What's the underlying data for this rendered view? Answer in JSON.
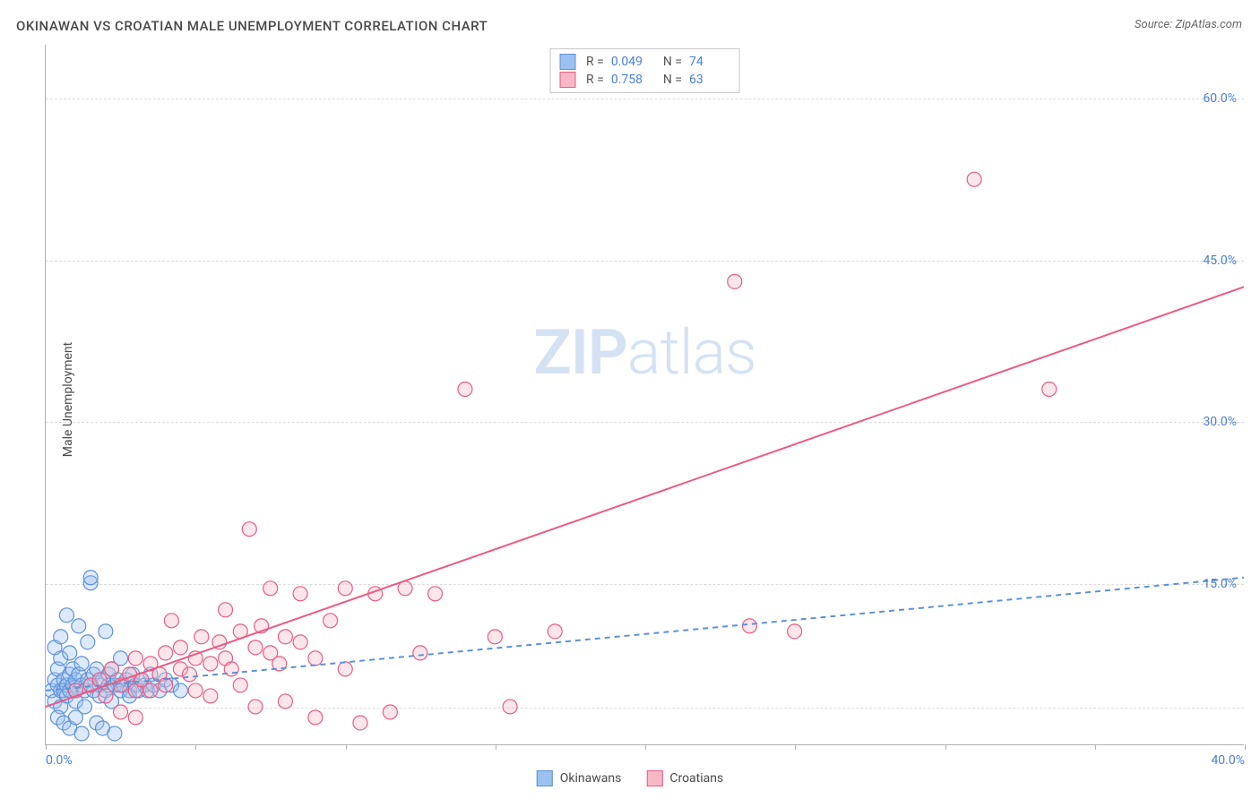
{
  "title": "OKINAWAN VS CROATIAN MALE UNEMPLOYMENT CORRELATION CHART",
  "source_prefix": "Source: ",
  "source_name": "ZipAtlas.com",
  "y_axis_label": "Male Unemployment",
  "watermark_bold": "ZIP",
  "watermark_light": "atlas",
  "chart": {
    "type": "scatter",
    "background_color": "#ffffff",
    "grid_color": "#dcdcdc",
    "axis_color": "#b0b0b0",
    "tick_label_color": "#4a7fd8",
    "xlim": [
      0,
      40
    ],
    "ylim": [
      0,
      65
    ],
    "x_ticks": [
      0,
      5,
      10,
      15,
      20,
      25,
      30,
      35,
      40
    ],
    "x_tick_labels": {
      "0": "0.0%",
      "40": "40.0%"
    },
    "y_ticks": [
      15,
      30,
      45,
      60
    ],
    "y_tick_labels": [
      "15.0%",
      "30.0%",
      "45.0%",
      "60.0%"
    ],
    "y_grid_extra": [
      3.5
    ],
    "marker_radius": 8,
    "marker_stroke_width": 1.2,
    "marker_fill_opacity": 0.35,
    "line_width": 2,
    "dash_pattern": "6 5"
  },
  "series": [
    {
      "key": "okinawans",
      "label": "Okinawans",
      "color_fill": "#9bc1f0",
      "color_stroke": "#5d92d6",
      "line_color": "#5d92d6",
      "line_dashed": true,
      "r_label": "R =",
      "r_value": "0.049",
      "n_label": "N =",
      "n_value": "74",
      "trend": {
        "x1": 0,
        "y1": 5.0,
        "x2": 40,
        "y2": 15.5
      },
      "points": [
        [
          0.2,
          5.0
        ],
        [
          0.3,
          6.0
        ],
        [
          0.3,
          4.0
        ],
        [
          0.4,
          5.5
        ],
        [
          0.4,
          7.0
        ],
        [
          0.5,
          5.0
        ],
        [
          0.5,
          3.5
        ],
        [
          0.5,
          8.0
        ],
        [
          0.6,
          6.0
        ],
        [
          0.6,
          5.0
        ],
        [
          0.7,
          5.5
        ],
        [
          0.7,
          4.5
        ],
        [
          0.8,
          6.5
        ],
        [
          0.8,
          5.0
        ],
        [
          0.8,
          8.5
        ],
        [
          0.9,
          5.5
        ],
        [
          0.9,
          7.0
        ],
        [
          1.0,
          6.0
        ],
        [
          1.0,
          4.0
        ],
        [
          1.0,
          5.0
        ],
        [
          1.1,
          11.0
        ],
        [
          1.1,
          6.5
        ],
        [
          1.2,
          5.5
        ],
        [
          1.2,
          7.5
        ],
        [
          1.3,
          5.0
        ],
        [
          1.3,
          3.5
        ],
        [
          1.4,
          6.0
        ],
        [
          1.4,
          9.5
        ],
        [
          1.5,
          5.5
        ],
        [
          1.5,
          15.0
        ],
        [
          1.5,
          15.5
        ],
        [
          1.6,
          6.5
        ],
        [
          1.6,
          5.0
        ],
        [
          1.7,
          2.0
        ],
        [
          1.7,
          7.0
        ],
        [
          1.8,
          5.5
        ],
        [
          1.8,
          4.5
        ],
        [
          1.9,
          6.0
        ],
        [
          1.9,
          1.5
        ],
        [
          2.0,
          5.0
        ],
        [
          2.0,
          10.5
        ],
        [
          2.1,
          6.5
        ],
        [
          2.1,
          5.5
        ],
        [
          2.2,
          4.0
        ],
        [
          2.2,
          7.0
        ],
        [
          2.3,
          5.5
        ],
        [
          2.3,
          1.0
        ],
        [
          2.4,
          6.0
        ],
        [
          2.5,
          5.0
        ],
        [
          2.5,
          8.0
        ],
        [
          2.6,
          5.5
        ],
        [
          2.7,
          6.0
        ],
        [
          2.8,
          5.0
        ],
        [
          2.8,
          4.5
        ],
        [
          2.9,
          6.5
        ],
        [
          3.0,
          5.5
        ],
        [
          3.1,
          5.0
        ],
        [
          3.2,
          6.0
        ],
        [
          3.3,
          5.5
        ],
        [
          3.4,
          5.0
        ],
        [
          3.5,
          6.5
        ],
        [
          3.6,
          5.5
        ],
        [
          3.8,
          5.0
        ],
        [
          4.0,
          6.0
        ],
        [
          4.2,
          5.5
        ],
        [
          4.5,
          5.0
        ],
        [
          0.4,
          2.5
        ],
        [
          0.6,
          2.0
        ],
        [
          0.8,
          1.5
        ],
        [
          1.0,
          2.5
        ],
        [
          1.2,
          1.0
        ],
        [
          0.3,
          9.0
        ],
        [
          0.5,
          10.0
        ],
        [
          0.7,
          12.0
        ]
      ]
    },
    {
      "key": "croatians",
      "label": "Croatians",
      "color_fill": "#f6b8c6",
      "color_stroke": "#ea5b85",
      "line_color": "#ea5b85",
      "line_dashed": false,
      "r_label": "R =",
      "r_value": "0.758",
      "n_label": "N =",
      "n_value": "63",
      "trend": {
        "x1": 0,
        "y1": 3.5,
        "x2": 40,
        "y2": 42.5
      },
      "points": [
        [
          1.0,
          5.0
        ],
        [
          1.5,
          5.5
        ],
        [
          1.8,
          6.0
        ],
        [
          2.0,
          4.5
        ],
        [
          2.2,
          7.0
        ],
        [
          2.5,
          5.5
        ],
        [
          2.8,
          6.5
        ],
        [
          3.0,
          5.0
        ],
        [
          3.0,
          8.0
        ],
        [
          3.2,
          6.0
        ],
        [
          3.5,
          7.5
        ],
        [
          3.5,
          5.0
        ],
        [
          3.8,
          6.5
        ],
        [
          4.0,
          8.5
        ],
        [
          4.0,
          5.5
        ],
        [
          4.2,
          11.5
        ],
        [
          4.5,
          7.0
        ],
        [
          4.5,
          9.0
        ],
        [
          4.8,
          6.5
        ],
        [
          5.0,
          8.0
        ],
        [
          5.0,
          5.0
        ],
        [
          5.2,
          10.0
        ],
        [
          5.5,
          7.5
        ],
        [
          5.5,
          4.5
        ],
        [
          5.8,
          9.5
        ],
        [
          6.0,
          8.0
        ],
        [
          6.0,
          12.5
        ],
        [
          6.2,
          7.0
        ],
        [
          6.5,
          10.5
        ],
        [
          6.5,
          5.5
        ],
        [
          6.8,
          20.0
        ],
        [
          7.0,
          9.0
        ],
        [
          7.0,
          3.5
        ],
        [
          7.2,
          11.0
        ],
        [
          7.5,
          8.5
        ],
        [
          7.5,
          14.5
        ],
        [
          7.8,
          7.5
        ],
        [
          8.0,
          10.0
        ],
        [
          8.0,
          4.0
        ],
        [
          8.5,
          9.5
        ],
        [
          8.5,
          14.0
        ],
        [
          9.0,
          8.0
        ],
        [
          9.0,
          2.5
        ],
        [
          9.5,
          11.5
        ],
        [
          10.0,
          7.0
        ],
        [
          10.0,
          14.5
        ],
        [
          10.5,
          2.0
        ],
        [
          11.0,
          14.0
        ],
        [
          11.5,
          3.0
        ],
        [
          12.0,
          14.5
        ],
        [
          12.5,
          8.5
        ],
        [
          13.0,
          14.0
        ],
        [
          14.0,
          33.0
        ],
        [
          15.0,
          10.0
        ],
        [
          15.5,
          3.5
        ],
        [
          17.0,
          10.5
        ],
        [
          23.5,
          11.0
        ],
        [
          23.0,
          43.0
        ],
        [
          25.0,
          10.5
        ],
        [
          31.0,
          52.5
        ],
        [
          33.5,
          33.0
        ],
        [
          2.5,
          3.0
        ],
        [
          3.0,
          2.5
        ]
      ]
    }
  ]
}
